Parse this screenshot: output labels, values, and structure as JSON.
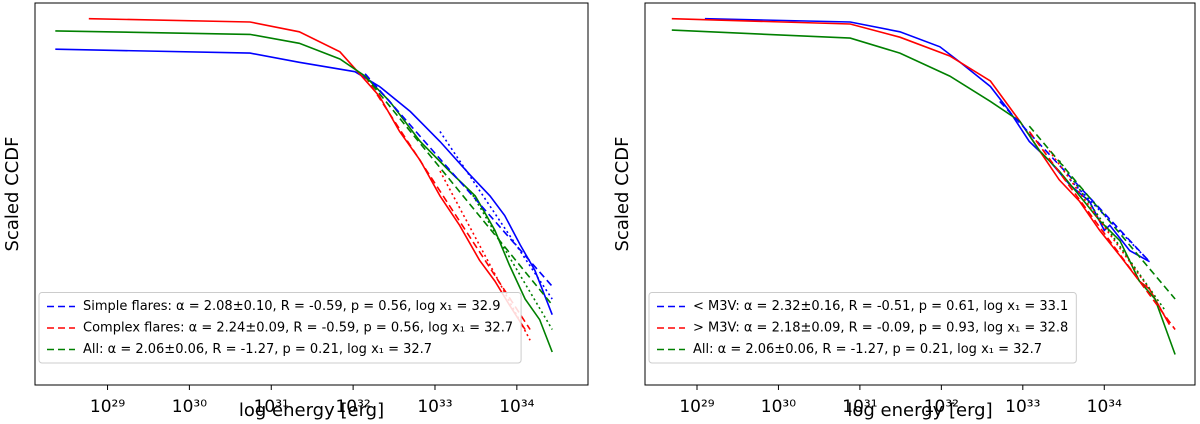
{
  "chart_data": [
    {
      "type": "line",
      "xlabel": "log energy [erg]",
      "ylabel": "Scaled CCDF",
      "xscale": "log",
      "yscale": "log",
      "xlim": [
        1.3e+28,
        7.4e+34
      ],
      "ylim": [
        0.00017,
        1
      ],
      "xticks": [
        {
          "value": 1e+29,
          "label": "10²⁹"
        },
        {
          "value": 1e+30,
          "label": "10³⁰"
        },
        {
          "value": 1e+31,
          "label": "10³¹"
        },
        {
          "value": 1e+32,
          "label": "10³²"
        },
        {
          "value": 1e+33,
          "label": "10³³"
        },
        {
          "value": 1e+34,
          "label": "10³⁴"
        }
      ],
      "legend": "lower left",
      "series": [
        {
          "color": "#0000ff",
          "style": "solid",
          "x": [
            2.3e+28,
            5.5e+30,
            2.2e+31,
            1.05e+32,
            2.1e+32,
            5e+32,
            1.15e+33,
            2.7e+33,
            4.7e+33,
            7.1e+33,
            1.1e+34,
            1.66e+34,
            2.7e+34
          ],
          "values": [
            0.35,
            0.32,
            0.26,
            0.21,
            0.15,
            0.085,
            0.043,
            0.02,
            0.0125,
            0.008,
            0.0041,
            0.0023,
            0.00084
          ]
        },
        {
          "color": "#ff0000",
          "style": "solid",
          "x": [
            5.9e+28,
            5.5e+30,
            2.2e+31,
            6.9e+31,
            1.2e+32,
            2.1e+32,
            3.7e+32,
            6.6e+32,
            1.15e+33,
            2e+33,
            3.5e+33,
            5.4e+33,
            8.1e+33,
            1.26e+34
          ],
          "values": [
            0.7,
            0.65,
            0.52,
            0.33,
            0.2,
            0.12,
            0.054,
            0.028,
            0.0125,
            0.0064,
            0.0029,
            0.0018,
            0.00105,
            0.0006
          ]
        },
        {
          "color": "#008000",
          "style": "solid",
          "x": [
            2.3e+28,
            5.5e+30,
            2.2e+31,
            6.9e+31,
            1.4e+32,
            2.8e+32,
            6.6e+32,
            1.5e+33,
            3.1e+33,
            5.4e+33,
            8.1e+33,
            1.26e+34,
            1.9e+34,
            2.7e+34
          ],
          "values": [
            0.53,
            0.49,
            0.4,
            0.28,
            0.19,
            0.107,
            0.043,
            0.022,
            0.0125,
            0.0057,
            0.0026,
            0.0012,
            0.00075,
            0.00036
          ]
        },
        {
          "name": "Simple flares: α = 2.08±0.10, R = -0.59, p = 0.56, log x₁ = 32.9",
          "color": "#0000ff",
          "style": "dashed",
          "x": [
            1.4e+32,
            2.7e+34
          ],
          "values": [
            0.2,
            0.0016
          ]
        },
        {
          "name": "Complex flares: α = 2.24±0.09, R = -0.59, p = 0.56, log x₁ = 32.7",
          "color": "#ff0000",
          "style": "dashed",
          "x": [
            1.4e+32,
            1.45e+34
          ],
          "values": [
            0.19,
            0.0006
          ]
        },
        {
          "name": "All: α = 2.06±0.06, R = -1.27, p = 0.21, log x₁ = 32.7",
          "color": "#008000",
          "style": "dashed",
          "x": [
            1.4e+32,
            2.7e+34
          ],
          "values": [
            0.19,
            0.00105
          ]
        },
        {
          "color": "#0000ff",
          "style": "dotted",
          "x": [
            1.15e+33,
            2.7e+34
          ],
          "values": [
            0.054,
            0.0012
          ]
        },
        {
          "color": "#ff0000",
          "style": "dotted",
          "x": [
            1.15e+33,
            1.45e+34
          ],
          "values": [
            0.022,
            0.00047
          ]
        },
        {
          "color": "#008000",
          "style": "dotted",
          "x": [
            2.7e+33,
            2.7e+34
          ],
          "values": [
            0.014,
            0.0006
          ]
        }
      ]
    },
    {
      "type": "line",
      "xlabel": "log energy [erg]",
      "ylabel": "Scaled CCDF",
      "xscale": "log",
      "yscale": "log",
      "xlim": [
        2.3e+28,
        1.3e+35
      ],
      "ylim": [
        0.00017,
        1
      ],
      "xticks": [
        {
          "value": 1e+29,
          "label": "10²⁹"
        },
        {
          "value": 1e+30,
          "label": "10³⁰"
        },
        {
          "value": 1e+31,
          "label": "10³¹"
        },
        {
          "value": 1e+32,
          "label": "10³²"
        },
        {
          "value": 1e+33,
          "label": "10³³"
        },
        {
          "value": 1e+34,
          "label": "10³⁴"
        }
      ],
      "legend": "lower left",
      "series": [
        {
          "color": "#0000ff",
          "style": "solid",
          "x": [
            1.25e+29,
            7.6e+30,
            3.1e+31,
            9.6e+31,
            1.7e+32,
            4e+32,
            6.9e+32,
            1.2e+33,
            2.1e+33,
            3.8e+33,
            6.6e+33,
            1e+34,
            1.17e+34,
            2.05e+34,
            3.6e+34
          ],
          "values": [
            0.7,
            0.65,
            0.52,
            0.37,
            0.26,
            0.15,
            0.085,
            0.043,
            0.028,
            0.016,
            0.011,
            0.0057,
            0.0064,
            0.0036,
            0.0028
          ]
        },
        {
          "color": "#ff0000",
          "style": "solid",
          "x": [
            4.9e+28,
            7.6e+30,
            3.1e+31,
            1.27e+32,
            4e+32,
            9.2e+32,
            1.6e+33,
            2.8e+33,
            5e+33,
            8.8e+33,
            1.56e+34,
            2.7e+34,
            3.6e+34,
            6.3e+34
          ],
          "values": [
            0.7,
            0.62,
            0.46,
            0.3,
            0.17,
            0.068,
            0.035,
            0.018,
            0.011,
            0.0057,
            0.0032,
            0.0018,
            0.0015,
            0.00067
          ]
        },
        {
          "color": "#008000",
          "style": "solid",
          "x": [
            4.9e+28,
            7.6e+30,
            3.1e+31,
            1.27e+32,
            4e+32,
            9.2e+32,
            1.6e+33,
            2.8e+33,
            5e+33,
            8.8e+33,
            1.56e+34,
            2.7e+34,
            4.2e+34,
            7.4e+34
          ],
          "values": [
            0.54,
            0.45,
            0.32,
            0.19,
            0.107,
            0.068,
            0.035,
            0.022,
            0.0125,
            0.0071,
            0.0045,
            0.0018,
            0.0012,
            0.00034
          ]
        },
        {
          "name": "< M3V: α = 2.32±0.16, R = -0.51, p = 0.61, log x₁ = 33.1",
          "color": "#0000ff",
          "style": "dashed",
          "x": [
            5.2e+32,
            3.6e+34
          ],
          "values": [
            0.107,
            0.0028
          ]
        },
        {
          "name": "> M3V: α = 2.18±0.09, R = -0.09, p = 0.93, log x₁ = 32.8",
          "color": "#ff0000",
          "style": "dashed",
          "x": [
            1.2e+33,
            7.4e+34
          ],
          "values": [
            0.054,
            0.0006
          ]
        },
        {
          "name": "All: α = 2.06±0.06, R = -1.27, p = 0.21, log x₁ = 32.7",
          "color": "#008000",
          "style": "dashed",
          "x": [
            1.2e+33,
            7.4e+34
          ],
          "values": [
            0.061,
            0.0012
          ]
        },
        {
          "color": "#0000ff",
          "style": "dotted",
          "x": [
            3.8e+33,
            3.6e+34
          ],
          "values": [
            0.018,
            0.0028
          ]
        },
        {
          "color": "#ff0000",
          "style": "dotted",
          "x": [
            2.1e+33,
            3.6e+34
          ],
          "values": [
            0.035,
            0.0015
          ]
        },
        {
          "color": "#008000",
          "style": "dotted",
          "x": [
            2.8e+33,
            5.5e+34
          ],
          "values": [
            0.028,
            0.00094
          ]
        }
      ]
    }
  ]
}
